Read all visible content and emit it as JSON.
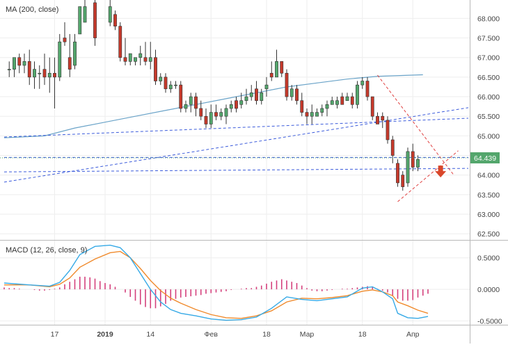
{
  "chart_data": {
    "type": "candlestick",
    "price_panel": {
      "indicator_label": "MA (200, close)",
      "y_ticks": [
        "68.000",
        "67.500",
        "67.000",
        "66.500",
        "66.000",
        "65.500",
        "65.000",
        "64.500",
        "64.000",
        "63.500",
        "63.000",
        "62.500"
      ],
      "ylim": [
        62.5,
        68.0
      ],
      "last_price_label": "64.439",
      "last_price": 64.439,
      "candles": [
        [
          1,
          66.7,
          66.9,
          66.5,
          66.7
        ],
        [
          2,
          66.7,
          67.0,
          66.5,
          67.0
        ],
        [
          3,
          67.0,
          67.1,
          66.6,
          66.8
        ],
        [
          4,
          66.8,
          67.1,
          66.6,
          66.9
        ],
        [
          5,
          66.9,
          67.2,
          66.3,
          66.5
        ],
        [
          6,
          66.5,
          66.9,
          66.2,
          66.7
        ],
        [
          7,
          66.6,
          66.8,
          66.2,
          66.6
        ],
        [
          8,
          66.7,
          67.1,
          66.3,
          66.5
        ],
        [
          9,
          66.5,
          67.0,
          66.1,
          66.6
        ],
        [
          10,
          66.6,
          67.0,
          65.7,
          66.5
        ],
        [
          11,
          66.5,
          67.6,
          66.4,
          67.4
        ],
        [
          12,
          67.5,
          67.9,
          67.3,
          67.4
        ],
        [
          13,
          67.0,
          67.6,
          66.5,
          66.7
        ],
        [
          14,
          66.8,
          67.6,
          66.7,
          67.4
        ],
        [
          15,
          67.6,
          68.3,
          67.6,
          68.3
        ],
        [
          16,
          67.9,
          68.5,
          67.9,
          68.3
        ],
        [
          18,
          68.4,
          68.8,
          67.3,
          67.5
        ],
        [
          21,
          67.9,
          68.5,
          67.8,
          68.3
        ],
        [
          22,
          68.1,
          68.2,
          67.7,
          67.8
        ],
        [
          23,
          67.8,
          67.9,
          66.9,
          67.0
        ],
        [
          24,
          67.0,
          67.5,
          66.8,
          66.9
        ],
        [
          25,
          66.9,
          67.1,
          66.8,
          67.1
        ],
        [
          26,
          66.9,
          67.0,
          66.8,
          67.0
        ],
        [
          27,
          67.0,
          67.3,
          66.8,
          67.1
        ],
        [
          28,
          67.0,
          67.4,
          66.8,
          66.9
        ],
        [
          29,
          66.9,
          67.4,
          66.7,
          67.0
        ],
        [
          30,
          67.0,
          67.2,
          66.3,
          66.4
        ],
        [
          31,
          66.4,
          66.6,
          66.3,
          66.5
        ],
        [
          32,
          66.5,
          66.6,
          66.1,
          66.2
        ],
        [
          33,
          66.2,
          66.4,
          66.1,
          66.3
        ],
        [
          34,
          66.3,
          66.4,
          66.2,
          66.3
        ],
        [
          35,
          66.3,
          66.4,
          65.6,
          65.7
        ],
        [
          36,
          65.7,
          65.9,
          65.6,
          65.8
        ],
        [
          37,
          65.8,
          66.1,
          65.6,
          66.0
        ],
        [
          38,
          66.0,
          66.1,
          65.5,
          65.7
        ],
        [
          39,
          65.7,
          65.9,
          65.4,
          65.5
        ],
        [
          40,
          65.5,
          65.7,
          65.2,
          65.3
        ],
        [
          41,
          65.3,
          65.8,
          65.2,
          65.6
        ],
        [
          42,
          65.6,
          65.8,
          65.4,
          65.5
        ],
        [
          43,
          65.5,
          65.7,
          65.4,
          65.6
        ],
        [
          44,
          65.5,
          65.8,
          65.3,
          65.7
        ],
        [
          45,
          65.7,
          65.9,
          65.6,
          65.8
        ],
        [
          46,
          65.9,
          66.0,
          65.6,
          65.7
        ],
        [
          47,
          65.8,
          66.1,
          65.7,
          65.9
        ],
        [
          48,
          65.9,
          66.2,
          65.8,
          66.0
        ],
        [
          49,
          66.0,
          66.3,
          65.9,
          66.1
        ],
        [
          50,
          66.2,
          66.4,
          65.8,
          65.9
        ],
        [
          51,
          65.9,
          66.2,
          65.8,
          66.1
        ],
        [
          52,
          66.2,
          66.5,
          66.0,
          66.3
        ],
        [
          53,
          66.6,
          66.9,
          66.4,
          66.5
        ],
        [
          54,
          66.5,
          67.2,
          66.5,
          66.9
        ],
        [
          55,
          66.9,
          66.9,
          66.5,
          66.6
        ],
        [
          56,
          66.6,
          66.7,
          65.9,
          66.0
        ],
        [
          57,
          66.0,
          66.3,
          65.9,
          66.2
        ],
        [
          58,
          66.2,
          66.3,
          65.8,
          65.9
        ],
        [
          59,
          65.9,
          66.1,
          65.5,
          65.6
        ],
        [
          60,
          65.6,
          65.7,
          65.3,
          65.5
        ],
        [
          61,
          65.5,
          65.8,
          65.3,
          65.6
        ],
        [
          62,
          65.5,
          65.7,
          65.5,
          65.6
        ],
        [
          63,
          65.6,
          65.8,
          65.5,
          65.7
        ],
        [
          64,
          65.7,
          65.9,
          65.5,
          65.8
        ],
        [
          65,
          65.8,
          66.0,
          65.8,
          65.9
        ],
        [
          66,
          65.8,
          66.0,
          65.7,
          65.9
        ],
        [
          67,
          66.0,
          66.1,
          65.8,
          65.8
        ],
        [
          68,
          65.9,
          66.1,
          65.9,
          66.0
        ],
        [
          69,
          66.0,
          66.1,
          65.7,
          65.8
        ],
        [
          70,
          65.8,
          66.4,
          65.7,
          66.3
        ],
        [
          71,
          66.3,
          66.5,
          66.2,
          66.4
        ],
        [
          72,
          66.4,
          66.5,
          65.9,
          66.0
        ],
        [
          73,
          66.0,
          66.0,
          65.4,
          65.5
        ],
        [
          74,
          65.5,
          65.6,
          65.3,
          65.3
        ],
        [
          75,
          65.5,
          65.6,
          65.2,
          65.4
        ],
        [
          76,
          65.4,
          65.5,
          64.8,
          64.9
        ],
        [
          77,
          64.9,
          65.0,
          64.3,
          64.5
        ],
        [
          78,
          64.3,
          64.4,
          63.7,
          63.8
        ],
        [
          79,
          64.0,
          64.1,
          63.6,
          63.7
        ],
        [
          80,
          63.8,
          64.7,
          63.7,
          64.6
        ],
        [
          81,
          64.6,
          64.8,
          64.1,
          64.2
        ],
        [
          82,
          64.2,
          64.5,
          64.1,
          64.4
        ]
      ],
      "ma200": [
        [
          0,
          64.95
        ],
        [
          8,
          65.0
        ],
        [
          14,
          65.2
        ],
        [
          20,
          65.35
        ],
        [
          26,
          65.5
        ],
        [
          32,
          65.65
        ],
        [
          38,
          65.8
        ],
        [
          44,
          65.95
        ],
        [
          50,
          66.1
        ],
        [
          56,
          66.25
        ],
        [
          62,
          66.35
        ],
        [
          68,
          66.45
        ],
        [
          74,
          66.52
        ],
        [
          83,
          66.56
        ]
      ],
      "trendlines": [
        {
          "style": "blue-dashed",
          "points": [
            [
              0,
              64.97
            ],
            [
              92,
              65.45
            ]
          ]
        },
        {
          "style": "blue-dashed",
          "points": [
            [
              0,
              63.82
            ],
            [
              92,
              65.72
            ]
          ]
        },
        {
          "style": "blue-dashed",
          "points": [
            [
              0,
              64.08
            ],
            [
              92,
              64.17
            ]
          ]
        },
        {
          "style": "blue-dashed",
          "points": [
            [
              0,
              64.45
            ],
            [
              92,
              64.45
            ]
          ]
        },
        {
          "style": "red-dashed",
          "points": [
            [
              74,
              66.55
            ],
            [
              89,
              64.02
            ]
          ]
        },
        {
          "style": "red-dashed",
          "points": [
            [
              78,
              63.32
            ],
            [
              90,
              64.62
            ]
          ]
        }
      ],
      "forecast_arrow": "down"
    },
    "macd_panel": {
      "indicator_label": "MACD (12, 26, close, 9)",
      "y_ticks": [
        "0.5000",
        "0.0000",
        "-0.5000"
      ],
      "ylim": [
        -0.55,
        0.75
      ],
      "macd": [
        [
          0,
          0.1
        ],
        [
          5,
          0.07
        ],
        [
          9,
          0.05
        ],
        [
          11,
          0.11
        ],
        [
          13,
          0.3
        ],
        [
          15,
          0.55
        ],
        [
          18,
          0.68
        ],
        [
          21,
          0.7
        ],
        [
          23,
          0.66
        ],
        [
          25,
          0.5
        ],
        [
          27,
          0.25
        ],
        [
          29,
          0.0
        ],
        [
          31,
          -0.2
        ],
        [
          33,
          -0.32
        ],
        [
          35,
          -0.38
        ],
        [
          38,
          -0.42
        ],
        [
          41,
          -0.47
        ],
        [
          44,
          -0.49
        ],
        [
          47,
          -0.48
        ],
        [
          50,
          -0.44
        ],
        [
          53,
          -0.3
        ],
        [
          56,
          -0.12
        ],
        [
          59,
          -0.16
        ],
        [
          62,
          -0.18
        ],
        [
          65,
          -0.15
        ],
        [
          68,
          -0.12
        ],
        [
          71,
          0.02
        ],
        [
          73,
          0.04
        ],
        [
          75,
          -0.04
        ],
        [
          77,
          -0.15
        ],
        [
          78,
          -0.38
        ],
        [
          80,
          -0.45
        ],
        [
          82,
          -0.46
        ],
        [
          84,
          -0.43
        ]
      ],
      "signal": [
        [
          0,
          0.07
        ],
        [
          5,
          0.07
        ],
        [
          9,
          0.04
        ],
        [
          11,
          0.08
        ],
        [
          13,
          0.18
        ],
        [
          15,
          0.35
        ],
        [
          18,
          0.48
        ],
        [
          21,
          0.58
        ],
        [
          23,
          0.6
        ],
        [
          25,
          0.5
        ],
        [
          27,
          0.33
        ],
        [
          29,
          0.14
        ],
        [
          31,
          -0.02
        ],
        [
          33,
          -0.14
        ],
        [
          35,
          -0.22
        ],
        [
          38,
          -0.32
        ],
        [
          41,
          -0.4
        ],
        [
          44,
          -0.45
        ],
        [
          47,
          -0.46
        ],
        [
          50,
          -0.42
        ],
        [
          53,
          -0.34
        ],
        [
          56,
          -0.2
        ],
        [
          59,
          -0.14
        ],
        [
          62,
          -0.15
        ],
        [
          65,
          -0.13
        ],
        [
          68,
          -0.1
        ],
        [
          71,
          -0.03
        ],
        [
          73,
          -0.01
        ],
        [
          75,
          -0.04
        ],
        [
          77,
          -0.1
        ],
        [
          78,
          -0.2
        ],
        [
          80,
          -0.26
        ],
        [
          82,
          -0.33
        ],
        [
          84,
          -0.38
        ]
      ],
      "histogram": [
        [
          0,
          0.03
        ],
        [
          1,
          0.02
        ],
        [
          2,
          0.02
        ],
        [
          3,
          0.01
        ],
        [
          4,
          0.0
        ],
        [
          5,
          0.0
        ],
        [
          6,
          -0.01
        ],
        [
          7,
          -0.02
        ],
        [
          8,
          -0.02
        ],
        [
          9,
          -0.01
        ],
        [
          10,
          0.01
        ],
        [
          11,
          0.03
        ],
        [
          12,
          0.08
        ],
        [
          13,
          0.12
        ],
        [
          14,
          0.16
        ],
        [
          15,
          0.2
        ],
        [
          16,
          0.2
        ],
        [
          17,
          0.19
        ],
        [
          18,
          0.17
        ],
        [
          19,
          0.13
        ],
        [
          20,
          0.1
        ],
        [
          21,
          0.08
        ],
        [
          22,
          0.04
        ],
        [
          23,
          0.0
        ],
        [
          24,
          -0.05
        ],
        [
          25,
          -0.12
        ],
        [
          26,
          -0.18
        ],
        [
          27,
          -0.24
        ],
        [
          28,
          -0.28
        ],
        [
          29,
          -0.3
        ],
        [
          30,
          -0.3
        ],
        [
          31,
          -0.27
        ],
        [
          32,
          -0.23
        ],
        [
          33,
          -0.18
        ],
        [
          34,
          -0.15
        ],
        [
          35,
          -0.13
        ],
        [
          36,
          -0.12
        ],
        [
          37,
          -0.11
        ],
        [
          38,
          -0.1
        ],
        [
          39,
          -0.09
        ],
        [
          40,
          -0.07
        ],
        [
          41,
          -0.06
        ],
        [
          42,
          -0.05
        ],
        [
          43,
          -0.04
        ],
        [
          44,
          -0.03
        ],
        [
          45,
          -0.01
        ],
        [
          46,
          0.0
        ],
        [
          47,
          0.01
        ],
        [
          48,
          0.02
        ],
        [
          49,
          0.02
        ],
        [
          50,
          0.04
        ],
        [
          51,
          0.06
        ],
        [
          52,
          0.09
        ],
        [
          53,
          0.12
        ],
        [
          54,
          0.14
        ],
        [
          55,
          0.16
        ],
        [
          56,
          0.14
        ],
        [
          57,
          0.12
        ],
        [
          58,
          0.1
        ],
        [
          59,
          0.06
        ],
        [
          60,
          0.02
        ],
        [
          61,
          -0.02
        ],
        [
          62,
          -0.03
        ],
        [
          63,
          -0.03
        ],
        [
          64,
          -0.02
        ],
        [
          65,
          -0.01
        ],
        [
          66,
          0.0
        ],
        [
          67,
          0.01
        ],
        [
          68,
          0.01
        ],
        [
          69,
          0.02
        ],
        [
          70,
          0.03
        ],
        [
          71,
          0.04
        ],
        [
          72,
          0.05
        ],
        [
          73,
          0.04
        ],
        [
          74,
          0.01
        ],
        [
          75,
          -0.02
        ],
        [
          76,
          -0.05
        ],
        [
          77,
          -0.1
        ],
        [
          78,
          -0.15
        ],
        [
          79,
          -0.18
        ],
        [
          80,
          -0.18
        ],
        [
          81,
          -0.17
        ],
        [
          82,
          -0.13
        ],
        [
          83,
          -0.1
        ],
        [
          84,
          -0.07
        ]
      ]
    },
    "x_ticks": [
      {
        "label": "17",
        "x": 10
      },
      {
        "label": "2019",
        "x": 20
      },
      {
        "label": "14",
        "x": 29
      },
      {
        "label": "Фев",
        "x": 41
      },
      {
        "label": "18",
        "x": 52
      },
      {
        "label": "Мар",
        "x": 60
      },
      {
        "label": "18",
        "x": 71
      },
      {
        "label": "Апр",
        "x": 81
      }
    ],
    "xlim": [
      0,
      84
    ],
    "colors": {
      "up": "#53a66c",
      "down": "#c5392b",
      "ma": "#6aa3c8",
      "macd": "#35a9e6",
      "signal": "#f08a2c",
      "hist": "#d4407c",
      "trend_blue": "#3b5bdb",
      "trend_red": "#e04040"
    }
  }
}
